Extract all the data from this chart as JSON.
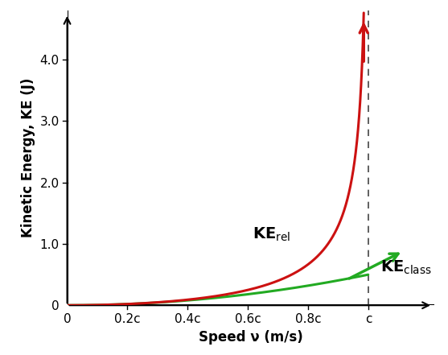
{
  "title": "",
  "xlabel": "Speed ν (m/s)",
  "ylabel": "Kinetic Energy, KE (J)",
  "x_ticks": [
    0,
    0.2,
    0.4,
    0.6,
    0.8,
    1.0
  ],
  "x_tick_labels": [
    "0",
    "0.2c",
    "0.4c",
    "0.6c",
    "0.8c",
    "c"
  ],
  "y_ticks": [
    0.0,
    1.0,
    2.0,
    3.0,
    4.0
  ],
  "y_tick_labels": [
    "0",
    "1.0",
    "2.0",
    "3.0",
    "4.0"
  ],
  "xlim": [
    0,
    1.22
  ],
  "ylim": [
    0,
    4.8
  ],
  "rel_color": "#cc1111",
  "class_color": "#22aa22",
  "dashed_line_color": "#444444",
  "background_color": "#ffffff",
  "fontsize_axis_label": 12,
  "fontsize_tick": 11,
  "fontsize_annotation": 13,
  "linewidth_curve": 2.2
}
